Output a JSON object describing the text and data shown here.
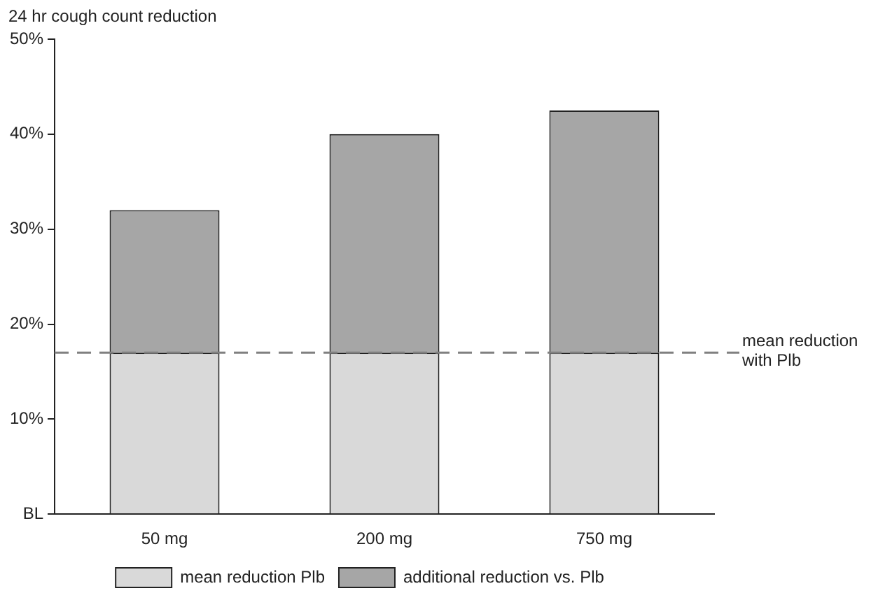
{
  "chart_data": {
    "type": "bar",
    "ylabel": "24 hr cough count reduction",
    "categories": [
      "50 mg",
      "200 mg",
      "750 mg"
    ],
    "stacked": true,
    "series": [
      {
        "name": "mean reduction Plb",
        "color": "#d9d9d9",
        "values": [
          17,
          17,
          17
        ]
      },
      {
        "name": "additional reduction vs. Plb",
        "color": "#a6a6a6",
        "values": [
          15,
          23,
          25.5
        ]
      }
    ],
    "ylim": [
      0,
      50
    ],
    "yticks": [
      {
        "value": 0,
        "label": "BL"
      },
      {
        "value": 10,
        "label": "10%"
      },
      {
        "value": 20,
        "label": "20%"
      },
      {
        "value": 30,
        "label": "30%"
      },
      {
        "value": 40,
        "label": "40%"
      },
      {
        "value": 50,
        "label": "50%"
      }
    ],
    "ref_lines": [
      {
        "axis": "y",
        "value": 17,
        "label": "mean reduction with Plb",
        "color": "#808080",
        "line_style": "dashed"
      }
    ],
    "grid": false,
    "legend": "bottom"
  }
}
